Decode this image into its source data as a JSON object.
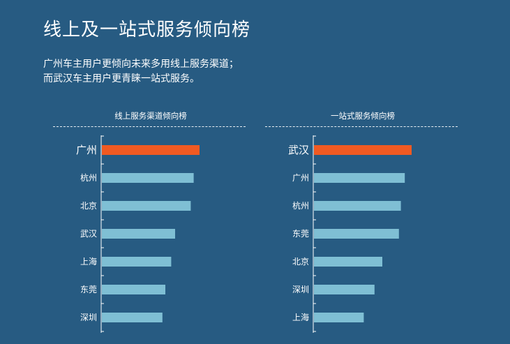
{
  "header": {
    "title": "线上及一站式服务倾向榜",
    "desc_line1": "广州车主用户更倾向未来多用线上服务渠道；",
    "desc_line2": "而武汉车主用户更青睐一站式服务。"
  },
  "colors": {
    "background": "#275b82",
    "highlight_bar": "#f05a22",
    "bar": "#7fbfd4",
    "axis": "#ffffff"
  },
  "chart_data": [
    {
      "type": "bar",
      "orientation": "horizontal",
      "title": "线上服务渠道倾向榜",
      "categories": [
        "广州",
        "杭州",
        "北京",
        "武汉",
        "上海",
        "东莞",
        "深圳"
      ],
      "values": [
        100,
        94,
        91,
        75,
        71,
        65,
        62
      ],
      "highlight_index": 0,
      "xlim": [
        0,
        100
      ],
      "grid": false,
      "legend": "none"
    },
    {
      "type": "bar",
      "orientation": "horizontal",
      "title": "一站式服务倾向榜",
      "categories": [
        "武汉",
        "广州",
        "杭州",
        "东莞",
        "北京",
        "深圳",
        "上海"
      ],
      "values": [
        100,
        93,
        89,
        87,
        70,
        62,
        51
      ],
      "highlight_index": 0,
      "xlim": [
        0,
        100
      ],
      "grid": false,
      "legend": "none"
    }
  ]
}
